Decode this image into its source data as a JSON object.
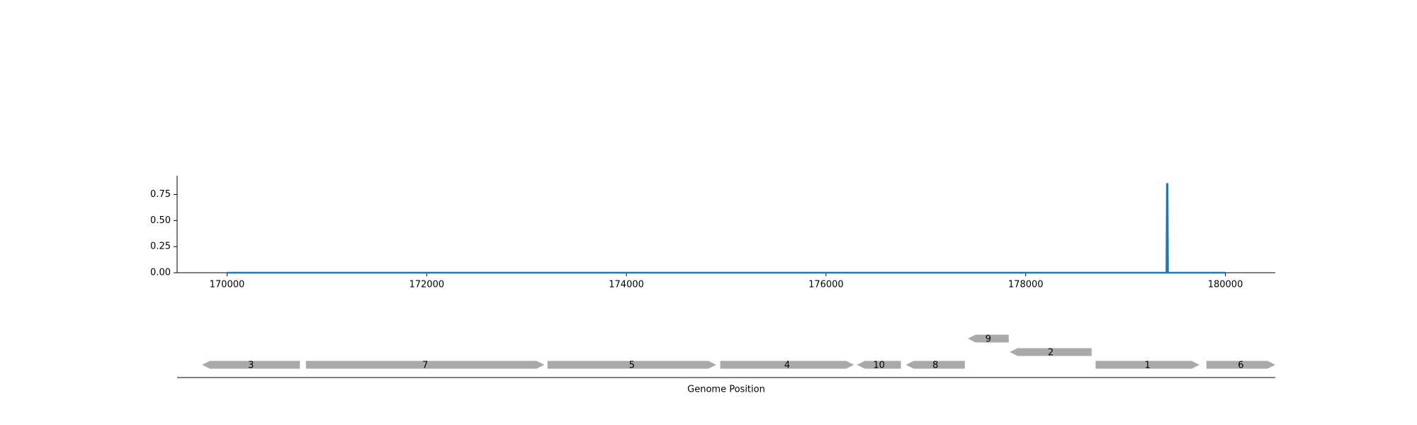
{
  "chart_data": [
    {
      "type": "line",
      "title": "",
      "xlabel": "",
      "ylabel": "",
      "xlim": [
        169500,
        180500
      ],
      "ylim": [
        0,
        0.93
      ],
      "x_ticks": [
        "170000",
        "172000",
        "174000",
        "176000",
        "178000",
        "180000"
      ],
      "y_ticks": [
        "0.00",
        "0.25",
        "0.50",
        "0.75"
      ],
      "grid": false,
      "line_color": "#1f77b4",
      "series": [
        {
          "x": [
            170000,
            179410,
            179415,
            179420,
            179425,
            180000
          ],
          "y": [
            0,
            0,
            0.85,
            0.85,
            0,
            0
          ]
        }
      ]
    },
    {
      "type": "gene-map",
      "xlabel": "Genome Position",
      "xlim": [
        169500,
        180500
      ],
      "gene_color": "#a9a9a9",
      "genes": [
        {
          "label": "3",
          "start": 169750,
          "end": 170730,
          "strand": "-",
          "row": 0
        },
        {
          "label": "7",
          "start": 170790,
          "end": 173180,
          "strand": "+",
          "row": 0
        },
        {
          "label": "5",
          "start": 173210,
          "end": 174900,
          "strand": "+",
          "row": 0
        },
        {
          "label": "4",
          "start": 174940,
          "end": 176280,
          "strand": "+",
          "row": 0
        },
        {
          "label": "10",
          "start": 176310,
          "end": 176750,
          "strand": "-",
          "row": 0
        },
        {
          "label": "8",
          "start": 176800,
          "end": 177390,
          "strand": "-",
          "row": 0
        },
        {
          "label": "9",
          "start": 177420,
          "end": 177830,
          "strand": "-",
          "row": 2
        },
        {
          "label": "2",
          "start": 177840,
          "end": 178660,
          "strand": "-",
          "row": 1
        },
        {
          "label": "1",
          "start": 178700,
          "end": 179740,
          "strand": "+",
          "row": 0
        },
        {
          "label": "6",
          "start": 179810,
          "end": 180500,
          "strand": "+",
          "row": 0
        }
      ]
    }
  ]
}
